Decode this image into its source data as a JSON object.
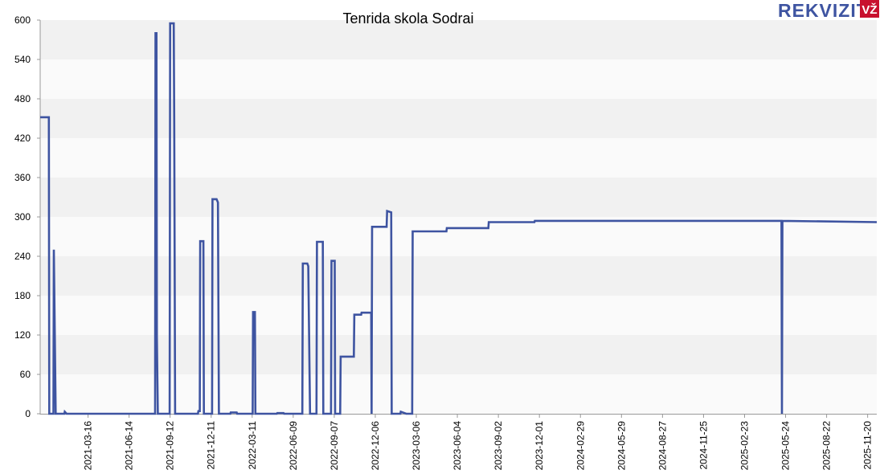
{
  "chart_data": {
    "type": "line",
    "step": true,
    "title": "Tenrida skola Sodrai",
    "xlabel": "",
    "ylabel": "",
    "ylim": [
      0,
      600
    ],
    "y_ticks": [
      0,
      60,
      120,
      180,
      240,
      300,
      360,
      420,
      480,
      540,
      600
    ],
    "x_range": [
      "2020-12-01",
      "2025-12-10"
    ],
    "x_ticks": [
      "2021-03-16",
      "2021-06-14",
      "2021-09-12",
      "2021-12-11",
      "2022-03-11",
      "2022-06-09",
      "2022-09-07",
      "2022-12-06",
      "2023-03-06",
      "2023-06-04",
      "2023-09-02",
      "2023-12-01",
      "2024-02-29",
      "2024-05-29",
      "2024-08-27",
      "2024-11-25",
      "2025-02-23",
      "2025-05-24",
      "2025-08-22",
      "2025-11-20"
    ],
    "grid": true,
    "legend": "none",
    "series": [
      {
        "color": "#3e54a1",
        "points": [
          [
            "2020-12-01",
            452
          ],
          [
            "2020-12-20",
            452
          ],
          [
            "2020-12-21",
            0
          ],
          [
            "2020-12-30",
            0
          ],
          [
            "2020-12-31",
            250
          ],
          [
            "2021-01-04",
            0
          ],
          [
            "2021-01-23",
            0
          ],
          [
            "2021-01-24",
            3
          ],
          [
            "2021-01-28",
            0
          ],
          [
            "2021-08-10",
            0
          ],
          [
            "2021-08-11",
            580
          ],
          [
            "2021-08-13",
            580
          ],
          [
            "2021-08-14",
            117
          ],
          [
            "2021-08-16",
            0
          ],
          [
            "2021-09-11",
            0
          ],
          [
            "2021-09-12",
            595
          ],
          [
            "2021-09-20",
            595
          ],
          [
            "2021-09-21",
            443
          ],
          [
            "2021-09-23",
            0
          ],
          [
            "2021-11-12",
            0
          ],
          [
            "2021-11-13",
            4
          ],
          [
            "2021-11-16",
            4
          ],
          [
            "2021-11-17",
            263
          ],
          [
            "2021-11-24",
            263
          ],
          [
            "2021-11-25",
            0
          ],
          [
            "2021-12-13",
            0
          ],
          [
            "2021-12-14",
            327
          ],
          [
            "2021-12-23",
            327
          ],
          [
            "2021-12-26",
            322
          ],
          [
            "2021-12-28",
            0
          ],
          [
            "2022-01-22",
            0
          ],
          [
            "2022-01-23",
            2
          ],
          [
            "2022-02-05",
            2
          ],
          [
            "2022-02-06",
            0
          ],
          [
            "2022-03-12",
            0
          ],
          [
            "2022-03-13",
            155
          ],
          [
            "2022-03-17",
            155
          ],
          [
            "2022-03-18",
            0
          ],
          [
            "2022-05-04",
            0
          ],
          [
            "2022-05-05",
            1
          ],
          [
            "2022-05-19",
            1
          ],
          [
            "2022-05-20",
            0
          ],
          [
            "2022-06-29",
            0
          ],
          [
            "2022-06-30",
            229
          ],
          [
            "2022-07-10",
            229
          ],
          [
            "2022-07-12",
            225
          ],
          [
            "2022-07-16",
            0
          ],
          [
            "2022-07-30",
            0
          ],
          [
            "2022-07-31",
            262
          ],
          [
            "2022-08-13",
            262
          ],
          [
            "2022-08-14",
            0
          ],
          [
            "2022-08-31",
            0
          ],
          [
            "2022-09-01",
            233
          ],
          [
            "2022-09-08",
            233
          ],
          [
            "2022-09-09",
            0
          ],
          [
            "2022-09-20",
            0
          ],
          [
            "2022-09-21",
            87
          ],
          [
            "2022-10-20",
            87
          ],
          [
            "2022-10-21",
            151
          ],
          [
            "2022-11-05",
            151
          ],
          [
            "2022-11-06",
            154
          ],
          [
            "2022-11-27",
            154
          ],
          [
            "2022-11-28",
            0
          ],
          [
            "2022-11-29",
            285
          ],
          [
            "2022-12-31",
            285
          ],
          [
            "2023-01-01",
            309
          ],
          [
            "2023-01-10",
            307
          ],
          [
            "2023-01-11",
            0
          ],
          [
            "2023-01-30",
            0
          ],
          [
            "2023-01-31",
            3
          ],
          [
            "2023-02-12",
            0
          ],
          [
            "2023-02-25",
            0
          ],
          [
            "2023-02-26",
            278
          ],
          [
            "2023-05-11",
            278
          ],
          [
            "2023-05-12",
            283
          ],
          [
            "2023-08-11",
            283
          ],
          [
            "2023-08-12",
            292
          ],
          [
            "2023-11-20",
            292
          ],
          [
            "2023-11-21",
            294
          ],
          [
            "2025-05-15",
            294
          ],
          [
            "2025-05-16",
            0
          ],
          [
            "2025-05-17",
            294
          ],
          [
            "2025-12-10",
            292
          ]
        ]
      }
    ]
  },
  "logo": {
    "text": "REKVIZITAI",
    "badge": "VŽ",
    "text_color": "#3e54a1",
    "badge_color": "#c8102e"
  }
}
